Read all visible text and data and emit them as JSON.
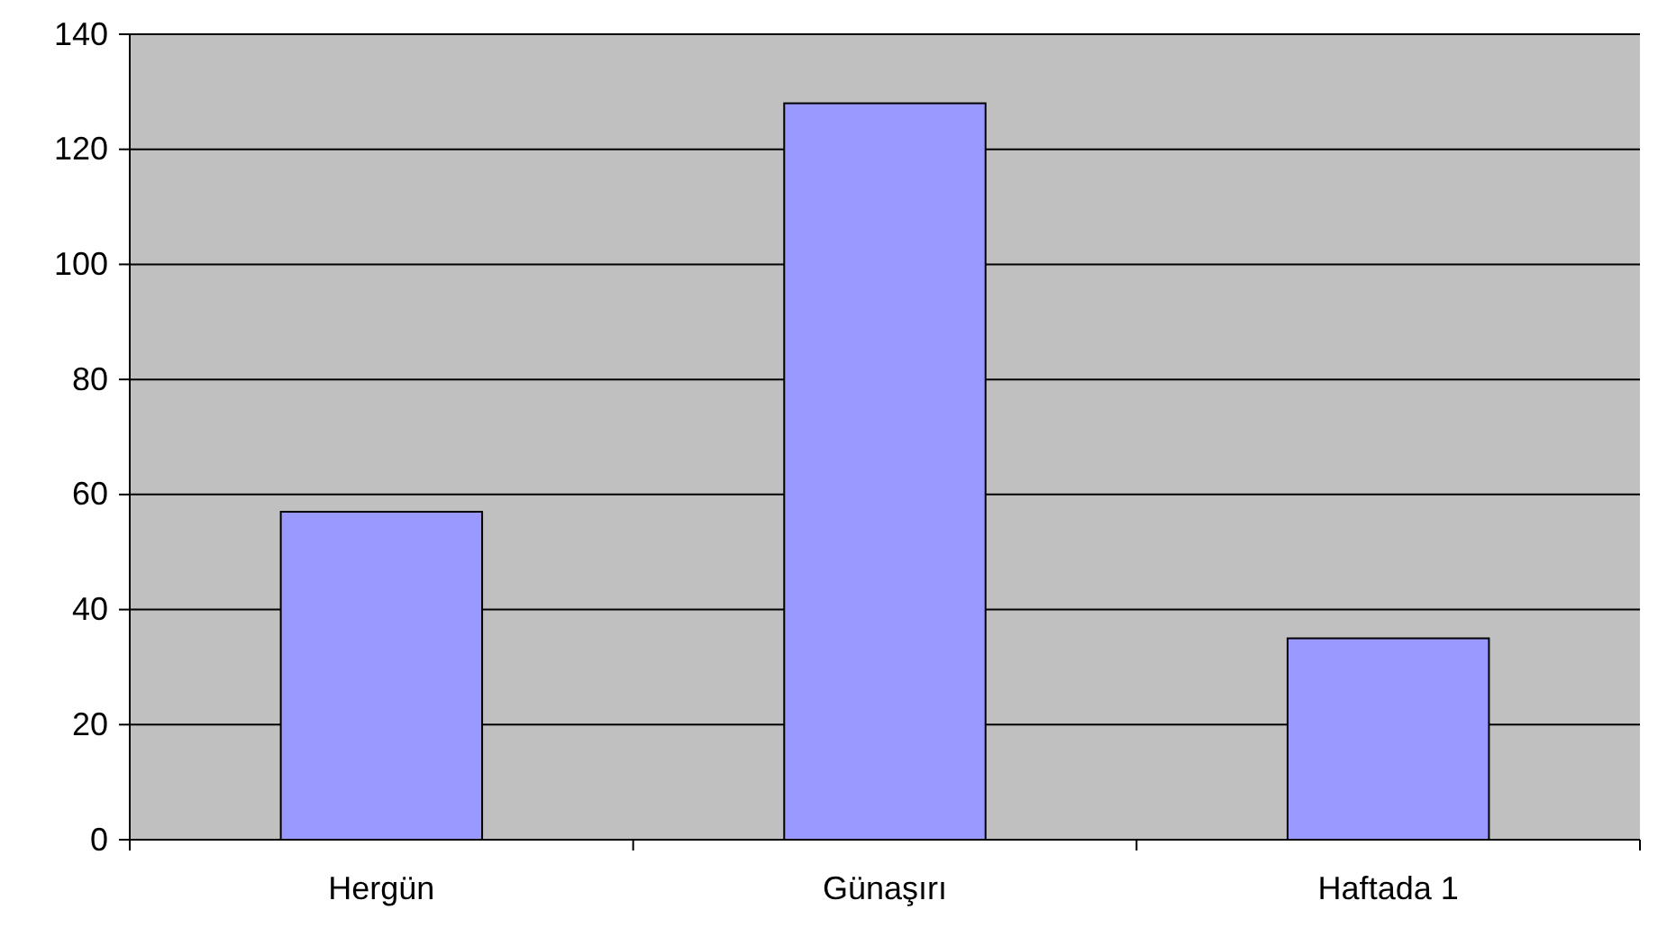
{
  "chart_data": {
    "type": "bar",
    "categories": [
      "Hergün",
      "Günaşırı",
      "Haftada 1"
    ],
    "values": [
      57,
      128,
      35
    ],
    "color": "#9999ff",
    "ylim": [
      0,
      140
    ],
    "yticks": [
      0,
      20,
      40,
      60,
      80,
      100,
      120,
      140
    ],
    "grid": "y"
  }
}
